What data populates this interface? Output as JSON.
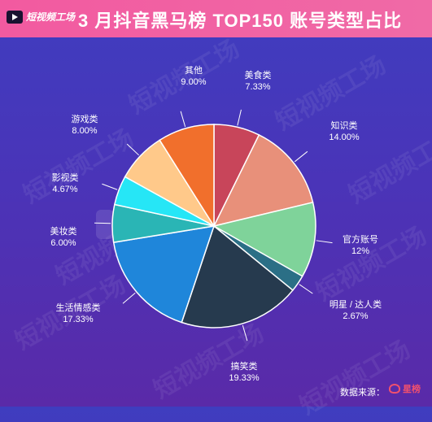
{
  "header": {
    "logo_text": "短视频工场",
    "title": "3 月抖音黑马榜 TOP150 账号类型占比"
  },
  "watermark_text": "短视频工场",
  "footer": {
    "source_label": "数据来源：",
    "brand_text": "星榜"
  },
  "chart_data": {
    "type": "pie",
    "title": "3 月抖音黑马榜 TOP150 账号类型占比",
    "slices": [
      {
        "name": "美食类",
        "value": 7.33,
        "label": "7.33%",
        "color": "#c8455a"
      },
      {
        "name": "知识类",
        "value": 14.0,
        "label": "14.00%",
        "color": "#e8907a"
      },
      {
        "name": "官方账号",
        "value": 12.0,
        "label": "12%",
        "color": "#7fd39a"
      },
      {
        "name": "明星 / 达人类",
        "value": 2.67,
        "label": "2.67%",
        "color": "#2b6f86"
      },
      {
        "name": "搞笑类",
        "value": 19.33,
        "label": "19.33%",
        "color": "#263a4e"
      },
      {
        "name": "生活情感类",
        "value": 17.33,
        "label": "17.33%",
        "color": "#1f86da"
      },
      {
        "name": "美妆类",
        "value": 6.0,
        "label": "6.00%",
        "color": "#2ab5b5"
      },
      {
        "name": "影视类",
        "value": 4.67,
        "label": "4.67%",
        "color": "#26e6f6"
      },
      {
        "name": "游戏类",
        "value": 8.0,
        "label": "8.00%",
        "color": "#ffc98a"
      },
      {
        "name": "其他",
        "value": 9.0,
        "label": "9.00%",
        "color": "#f16f2c"
      }
    ],
    "start_angle_deg": 0,
    "direction": "clockwise",
    "legend": "none",
    "label_placement": "outside-with-leader-lines"
  }
}
